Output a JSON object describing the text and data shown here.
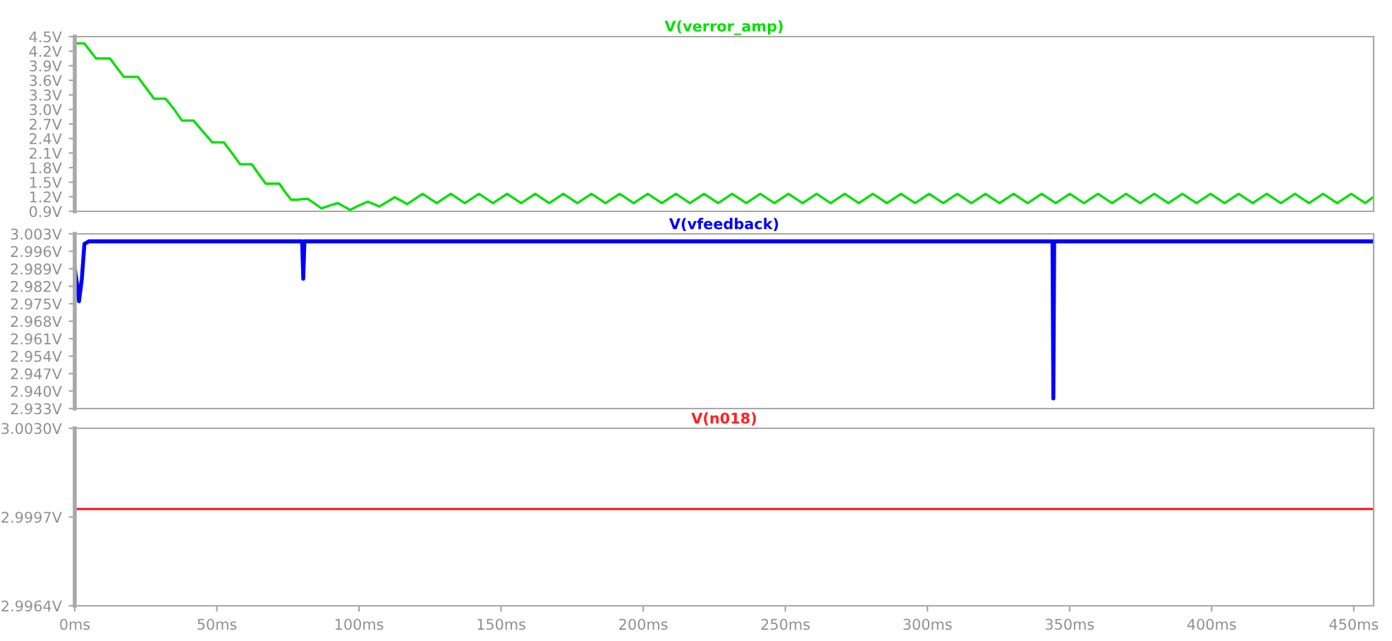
{
  "chart_data": [
    {
      "type": "line",
      "legend": "top",
      "tick_labels": "y",
      "xlim": [
        0,
        457
      ],
      "ylim": [
        0.9,
        4.5
      ],
      "yticks": [
        {
          "value": 0.9,
          "label": "0.9V"
        },
        {
          "value": 1.2,
          "label": "1.2V"
        },
        {
          "value": 1.5,
          "label": "1.5V"
        },
        {
          "value": 1.8,
          "label": "1.8V"
        },
        {
          "value": 2.1,
          "label": "2.1V"
        },
        {
          "value": 2.4,
          "label": "2.4V"
        },
        {
          "value": 2.7,
          "label": "2.7V"
        },
        {
          "value": 3.0,
          "label": "3.0V"
        },
        {
          "value": 3.3,
          "label": "3.3V"
        },
        {
          "value": 3.6,
          "label": "3.6V"
        },
        {
          "value": 3.9,
          "label": "3.9V"
        },
        {
          "value": 4.2,
          "label": "4.2V"
        },
        {
          "value": 4.5,
          "label": "4.5V"
        }
      ],
      "series": [
        {
          "name": "V(verror_amp)",
          "color": "#00e000",
          "x": [
            0,
            3.4,
            5.5,
            7.5,
            12.4,
            14.8,
            17.3,
            22.2,
            25,
            27.9,
            32,
            35,
            37.7,
            41.8,
            45,
            48.4,
            52.5,
            55.3,
            58.2,
            62.3,
            64.7,
            67.2,
            72,
            74,
            76.1,
            78.6,
            81.9,
            84.4,
            86.8,
            89.7,
            92.5,
            94.7,
            96.9,
            100,
            103.1,
            107.2,
            112.6,
            117,
            122.4,
            127.35,
            132.3,
            137.25,
            142.2,
            147.15,
            152.1,
            157.05,
            162.0,
            166.95,
            171.9,
            176.85,
            181.8,
            186.75,
            191.7,
            196.65,
            201.6,
            206.55,
            211.5,
            216.45,
            221.4,
            226.35,
            231.3,
            236.25,
            241.2,
            246.15,
            251.1,
            256.05,
            261.0,
            265.95,
            270.9,
            275.85,
            280.8,
            285.75,
            290.7,
            295.65,
            300.6,
            305.55,
            310.5,
            315.45,
            320.4,
            325.35,
            330.3,
            335.25,
            340.2,
            345.15,
            350.1,
            355.05,
            360.0,
            364.95,
            369.9,
            374.85,
            379.8,
            384.75,
            389.7,
            394.65,
            399.6,
            404.55,
            409.5,
            414.45,
            419.4,
            424.35,
            429.3,
            434.25,
            439.2,
            444.15,
            449.1,
            454.05,
            457
          ],
          "values": [
            4.36,
            4.36,
            4.2,
            4.05,
            4.05,
            3.86,
            3.67,
            3.67,
            3.45,
            3.22,
            3.22,
            3.0,
            2.77,
            2.77,
            2.55,
            2.32,
            2.32,
            2.1,
            1.87,
            1.87,
            1.67,
            1.47,
            1.47,
            1.3,
            1.14,
            1.14,
            1.16,
            1.06,
            0.96,
            1.02,
            1.07,
            1.0,
            0.93,
            1.02,
            1.1,
            1.0,
            1.19,
            1.05,
            1.26,
            1.07,
            1.26,
            1.07,
            1.26,
            1.07,
            1.26,
            1.07,
            1.26,
            1.07,
            1.26,
            1.07,
            1.26,
            1.07,
            1.26,
            1.07,
            1.26,
            1.07,
            1.26,
            1.07,
            1.26,
            1.07,
            1.26,
            1.07,
            1.26,
            1.07,
            1.26,
            1.07,
            1.26,
            1.07,
            1.26,
            1.07,
            1.26,
            1.07,
            1.26,
            1.07,
            1.26,
            1.07,
            1.26,
            1.07,
            1.26,
            1.07,
            1.26,
            1.07,
            1.26,
            1.07,
            1.26,
            1.07,
            1.26,
            1.07,
            1.26,
            1.07,
            1.26,
            1.07,
            1.26,
            1.07,
            1.26,
            1.07,
            1.26,
            1.07,
            1.26,
            1.07,
            1.26,
            1.07,
            1.26,
            1.07,
            1.26,
            1.07,
            1.2
          ]
        }
      ]
    },
    {
      "type": "line",
      "legend": "top",
      "tick_labels": "y",
      "xlim": [
        0,
        457
      ],
      "ylim": [
        2.933,
        3.003
      ],
      "yticks": [
        {
          "value": 2.933,
          "label": "2.933V"
        },
        {
          "value": 2.94,
          "label": "2.940V"
        },
        {
          "value": 2.947,
          "label": "2.947V"
        },
        {
          "value": 2.954,
          "label": "2.954V"
        },
        {
          "value": 2.961,
          "label": "2.961V"
        },
        {
          "value": 2.968,
          "label": "2.968V"
        },
        {
          "value": 2.975,
          "label": "2.975V"
        },
        {
          "value": 2.982,
          "label": "2.982V"
        },
        {
          "value": 2.989,
          "label": "2.989V"
        },
        {
          "value": 2.996,
          "label": "2.996V"
        },
        {
          "value": 3.003,
          "label": "3.003V"
        }
      ],
      "series": [
        {
          "name": "V(vfeedback)",
          "color": "#0000ff",
          "x": [
            0,
            0.8,
            1.5,
            2.5,
            3.4,
            5,
            80.0,
            80.4,
            80.8,
            344.0,
            344.3,
            344.6,
            457
          ],
          "values": [
            2.989,
            2.983,
            2.976,
            2.985,
            2.999,
            3.0,
            3.0,
            2.985,
            3.0,
            3.0,
            2.937,
            3.0,
            3.0
          ]
        }
      ]
    },
    {
      "type": "line",
      "legend": "top",
      "xlim": [
        0,
        457
      ],
      "ylim": [
        2.9964,
        3.003
      ],
      "yticks": [
        {
          "value": 2.9964,
          "label": "2.9964V"
        },
        {
          "value": 2.9997,
          "label": "2.9997V"
        },
        {
          "value": 3.003,
          "label": "3.0030V"
        }
      ],
      "xticks": [
        {
          "value": 0,
          "label": "0ms"
        },
        {
          "value": 50,
          "label": "50ms"
        },
        {
          "value": 100,
          "label": "100ms"
        },
        {
          "value": 150,
          "label": "150ms"
        },
        {
          "value": 200,
          "label": "200ms"
        },
        {
          "value": 250,
          "label": "250ms"
        },
        {
          "value": 300,
          "label": "300ms"
        },
        {
          "value": 350,
          "label": "350ms"
        },
        {
          "value": 400,
          "label": "400ms"
        },
        {
          "value": 450,
          "label": "450ms"
        }
      ],
      "series": [
        {
          "name": "V(n018)",
          "color": "#ff2020",
          "x": [
            0,
            457
          ],
          "values": [
            3.0,
            3.0
          ]
        }
      ]
    }
  ]
}
